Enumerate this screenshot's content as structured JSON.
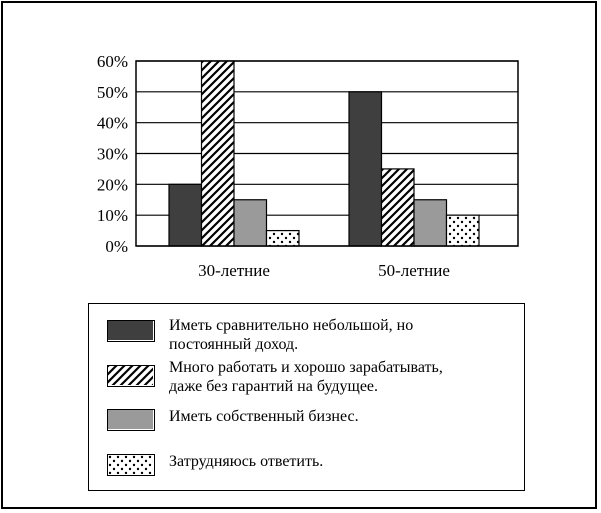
{
  "chart_data": {
    "type": "bar",
    "categories": [
      "30-летние",
      "50-летние"
    ],
    "series": [
      {
        "name": "Иметь сравнительно небольшой, но\nпостоянный доход.",
        "values": [
          20,
          50
        ],
        "color": "#3f3f3f",
        "pattern": "solid-dark"
      },
      {
        "name": "Много работать и хорошо зарабатывать,\nдаже без гарантий на будущее.",
        "values": [
          60,
          25
        ],
        "color": "#000000",
        "pattern": "diagonal-hatch"
      },
      {
        "name": "Иметь собственный бизнес.",
        "values": [
          15,
          15
        ],
        "color": "#9a9a9a",
        "pattern": "solid-gray"
      },
      {
        "name": "Затрудняюсь ответить.",
        "values": [
          5,
          10
        ],
        "color": "#000000",
        "pattern": "dots"
      }
    ],
    "ylim": [
      0,
      60
    ],
    "yticks": [
      "0%",
      "10%",
      "20%",
      "30%",
      "40%",
      "50%",
      "60%"
    ],
    "grid": true,
    "legend_position": "bottom",
    "title": "",
    "xlabel": "",
    "ylabel": ""
  }
}
